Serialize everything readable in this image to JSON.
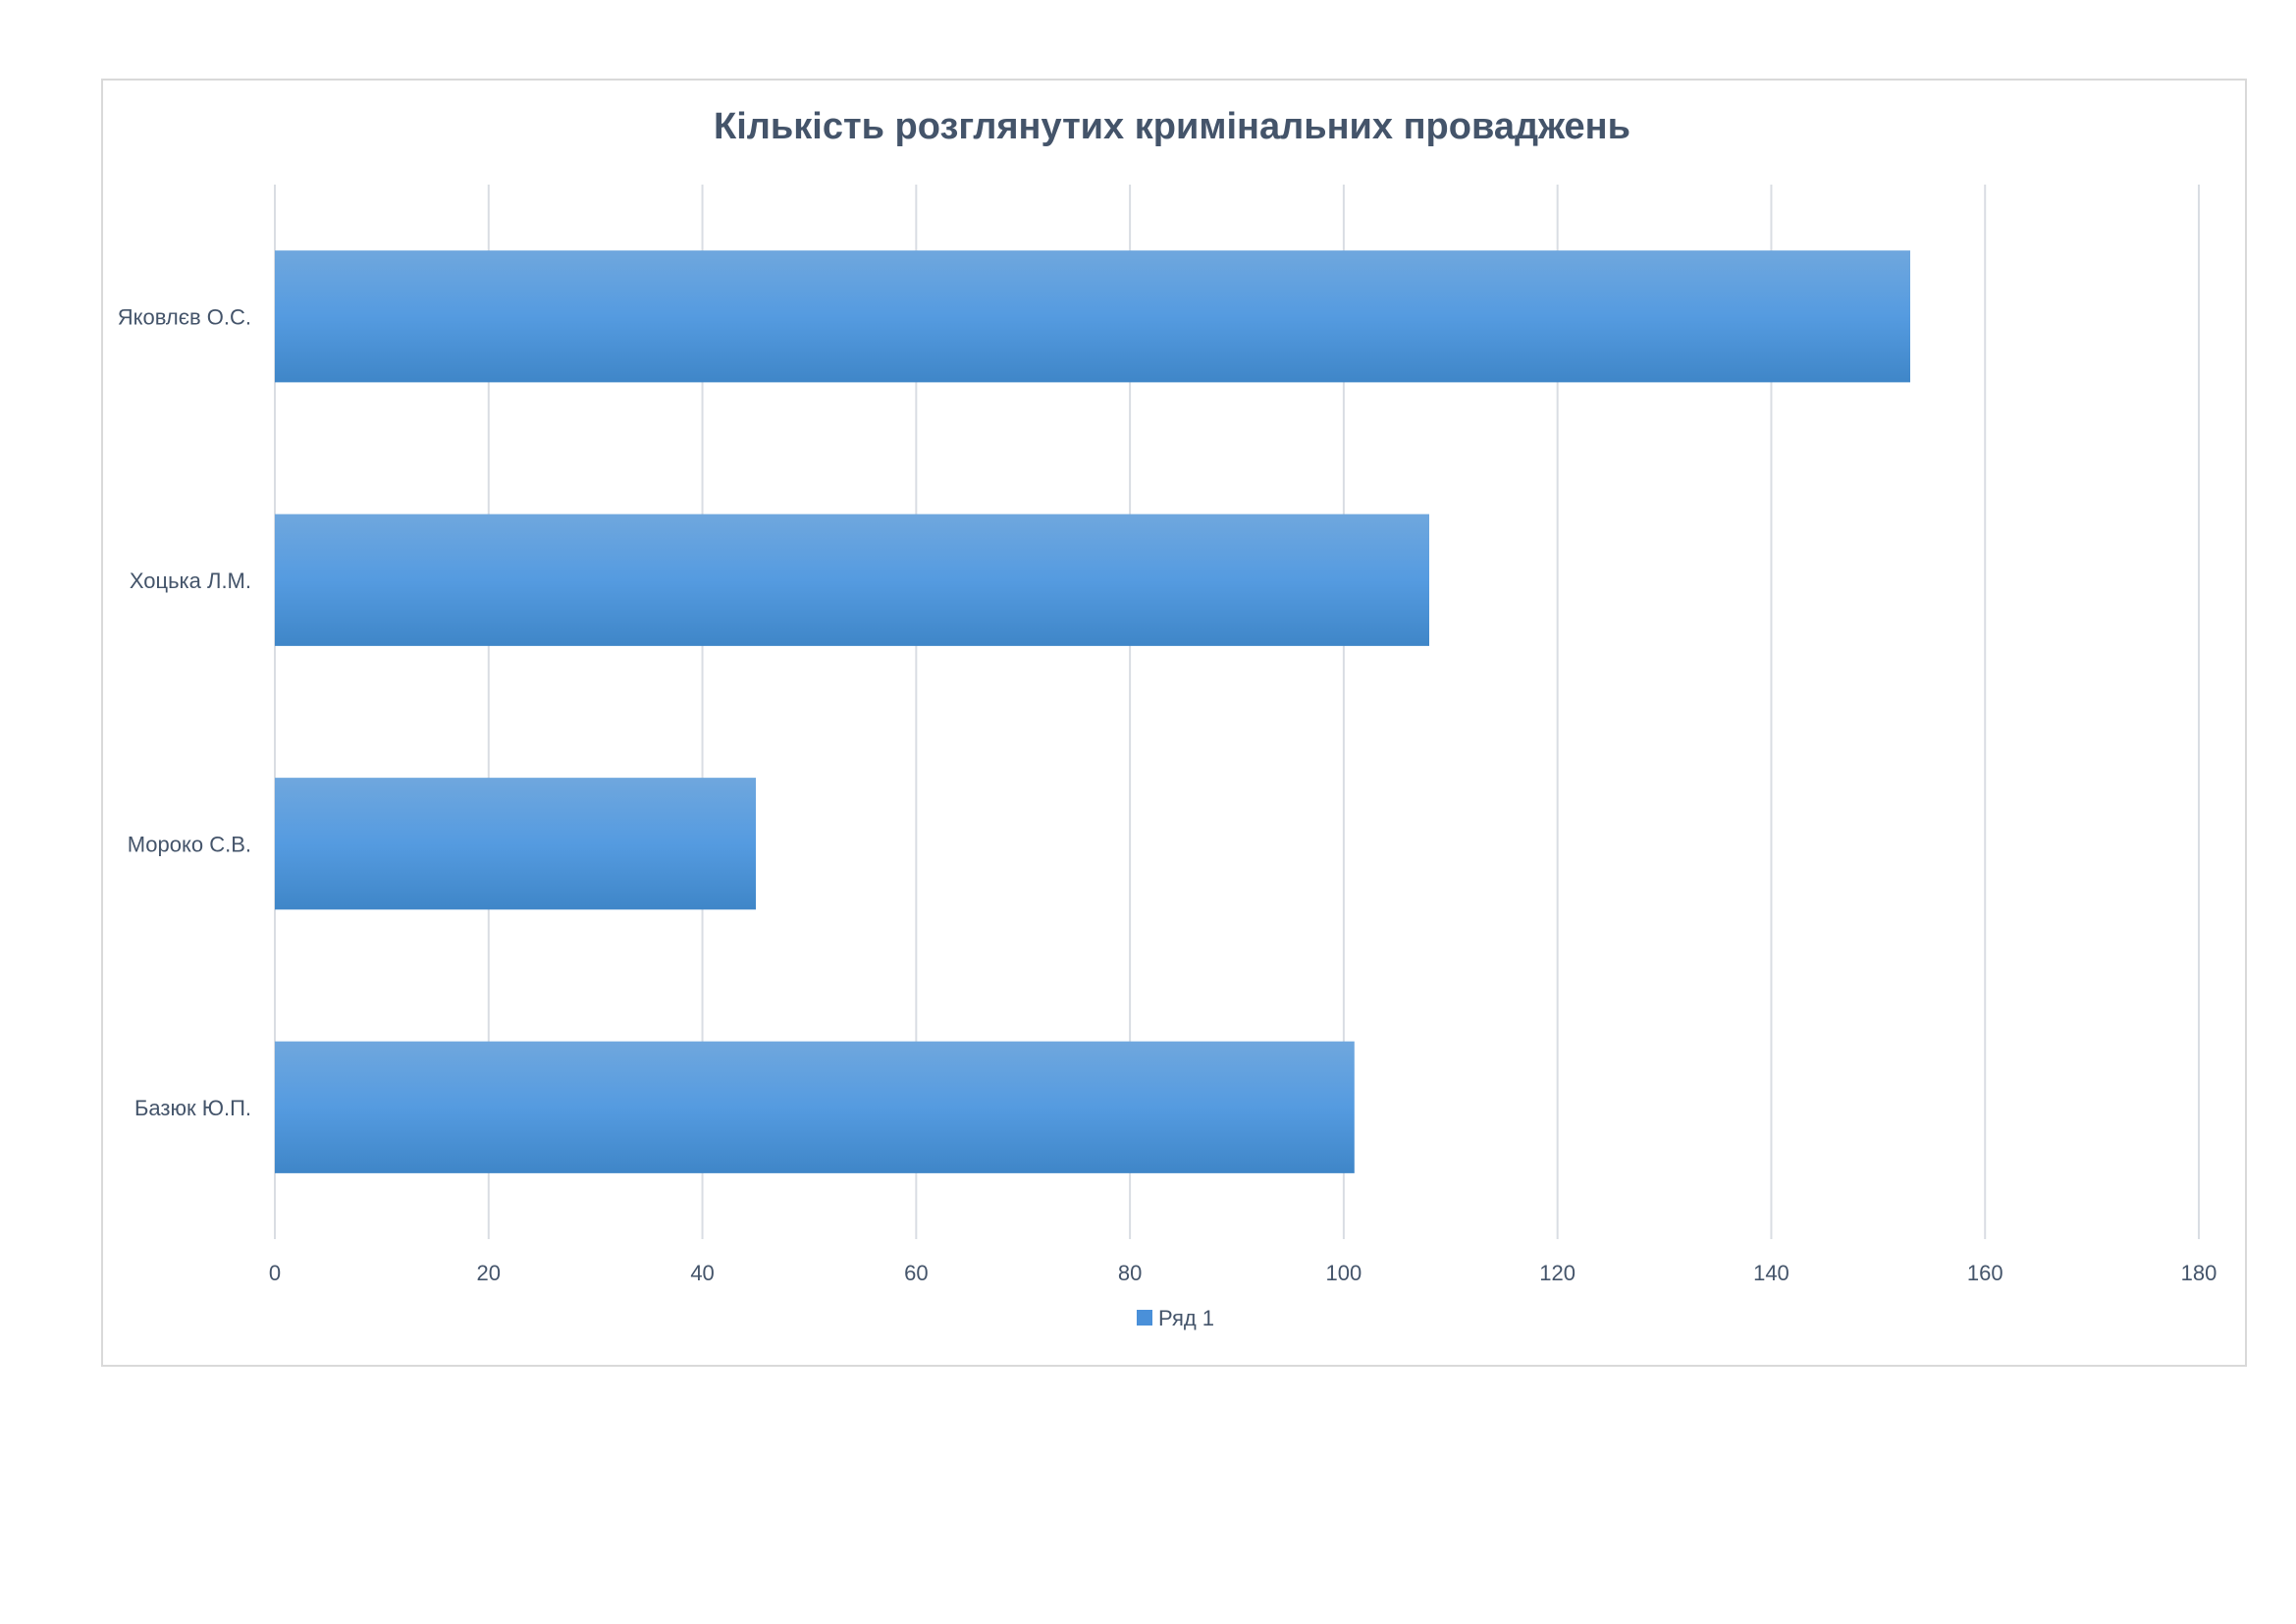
{
  "chart_data": {
    "type": "bar",
    "orientation": "horizontal",
    "title": "Кількість розглянутих кримінальних проваджень",
    "categories": [
      "Яковлєв О.С.",
      "Хоцька Л.М.",
      "Мороко С.В.",
      "Базюк Ю.П."
    ],
    "series": [
      {
        "name": "Ряд 1",
        "values": [
          153,
          108,
          45,
          101
        ],
        "color": "#4a90d9"
      }
    ],
    "xlim": [
      0,
      180
    ],
    "xticks": [
      "0",
      "20",
      "40",
      "60",
      "80",
      "100",
      "120",
      "140",
      "160",
      "180"
    ],
    "grid": true,
    "legend_position": "bottom"
  }
}
